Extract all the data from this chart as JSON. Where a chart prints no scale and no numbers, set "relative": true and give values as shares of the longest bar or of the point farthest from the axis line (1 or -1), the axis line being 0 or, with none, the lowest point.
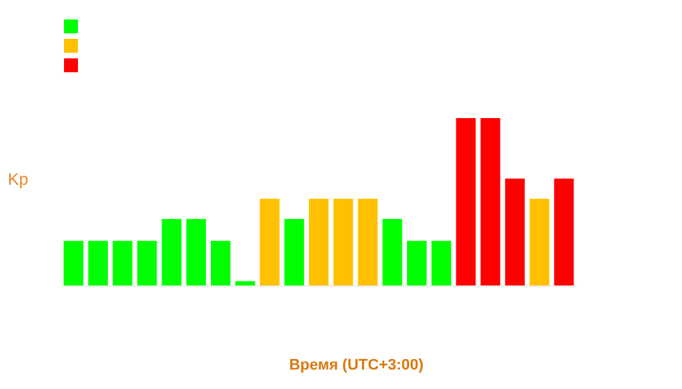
{
  "chart_data": {
    "type": "bar",
    "relative": true,
    "xlabel": "Время (UTC+3:00)",
    "ylabel": "Kp",
    "categories": [
      null,
      null,
      null,
      null,
      null,
      null,
      null,
      null,
      null,
      null,
      null,
      null,
      null,
      null,
      null,
      null,
      null,
      null,
      null,
      null,
      null
    ],
    "values": [
      0.27,
      0.27,
      0.27,
      0.27,
      0.4,
      0.4,
      0.27,
      0.03,
      0.52,
      0.4,
      0.52,
      0.52,
      0.52,
      0.4,
      0.27,
      0.27,
      1,
      1,
      0.64,
      0.52,
      0.64
    ],
    "colors": [
      "#00ff00",
      "#00ff00",
      "#00ff00",
      "#00ff00",
      "#00ff00",
      "#00ff00",
      "#00ff00",
      "#00ff00",
      "#ffc000",
      "#00ff00",
      "#ffc000",
      "#ffc000",
      "#ffc000",
      "#00ff00",
      "#00ff00",
      "#00ff00",
      "#ff0000",
      "#ff0000",
      "#ff0000",
      "#ffc000",
      "#ff0000"
    ]
  }
}
